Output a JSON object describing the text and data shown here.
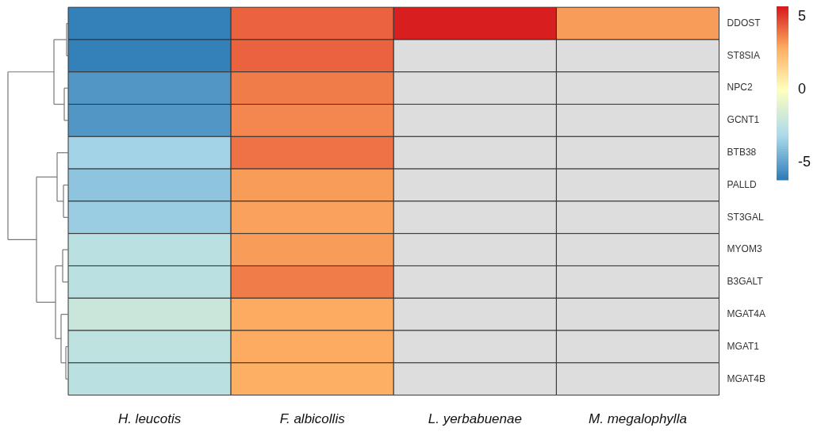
{
  "chart_data": {
    "type": "heatmap",
    "categories": [
      "H. leucotis",
      "F. albicollis",
      "L. yerbabuenae",
      "M. megalophylla"
    ],
    "y_categories": [
      "DDOST",
      "ST8SIA",
      "NPC2",
      "GCNT1",
      "BTB38",
      "PALLD",
      "ST3GAL",
      "MYOM3",
      "B3GALT",
      "MGAT4A",
      "MGAT1",
      "MGAT4B"
    ],
    "cells": [
      [
        -6.0,
        4.3,
        5.6,
        3.2
      ],
      [
        -6.0,
        4.3,
        null,
        null
      ],
      [
        -5.3,
        3.8,
        null,
        null
      ],
      [
        -5.3,
        3.6,
        null,
        null
      ],
      [
        -3.3,
        4.0,
        null,
        null
      ],
      [
        -3.8,
        3.2,
        null,
        null
      ],
      [
        -3.5,
        3.1,
        null,
        null
      ],
      [
        -2.5,
        3.2,
        null,
        null
      ],
      [
        -2.5,
        3.8,
        null,
        null
      ],
      [
        -2.0,
        2.9,
        null,
        null
      ],
      [
        -2.4,
        2.9,
        null,
        null
      ],
      [
        -2.5,
        2.8,
        null,
        null
      ]
    ],
    "clim": [
      -6.2,
      5.7
    ],
    "cticks": [
      -5,
      0,
      5
    ]
  }
}
